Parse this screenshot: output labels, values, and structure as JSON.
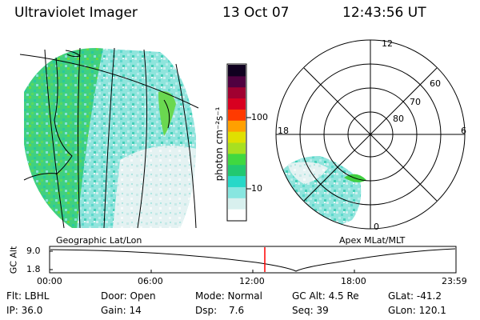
{
  "header": {
    "instrument": "Ultraviolet Imager",
    "date": "13 Oct 07",
    "time": "12:43:56 UT"
  },
  "colorbar": {
    "unit_label": "photon cm⁻²s⁻¹",
    "tick_labels": [
      "100",
      "10"
    ],
    "colors": [
      "#ffffff",
      "#d8f0ee",
      "#88e6e0",
      "#28d8c8",
      "#22c870",
      "#40d840",
      "#a8e020",
      "#e0e000",
      "#ffa000",
      "#ff3a00",
      "#d80020",
      "#a00030",
      "#500040",
      "#100020"
    ]
  },
  "polar_plot": {
    "mlt_labels": {
      "top": "12",
      "bottom": "0",
      "left": "18",
      "right": "6"
    },
    "lat_labels": [
      "60",
      "70",
      "80"
    ]
  },
  "map_labels": {
    "left": "Geographic Lat/Lon",
    "right": "Apex MLat/MLT"
  },
  "timeline": {
    "ylabel": "GC Alt",
    "yticks": [
      "9.0",
      "1.8"
    ],
    "xticks": [
      "00:00",
      "06:00",
      "12:00",
      "18:00",
      "23:59"
    ],
    "marker_color": "#ff0000"
  },
  "status": {
    "flt_label": "Flt: LBHL",
    "door_label": "Door: Open",
    "mode_label": "Mode: Normal",
    "gcalt_label": "GC Alt: 4.5 Re",
    "glat_label": "GLat: -41.2",
    "ip_label": "IP: 36.0",
    "gain_label": "Gain: 14",
    "dsp_label": "Dsp:",
    "dsp_value": "7.6",
    "seq_label": "Seq: 39",
    "glon_label": "GLon: 120.1"
  }
}
